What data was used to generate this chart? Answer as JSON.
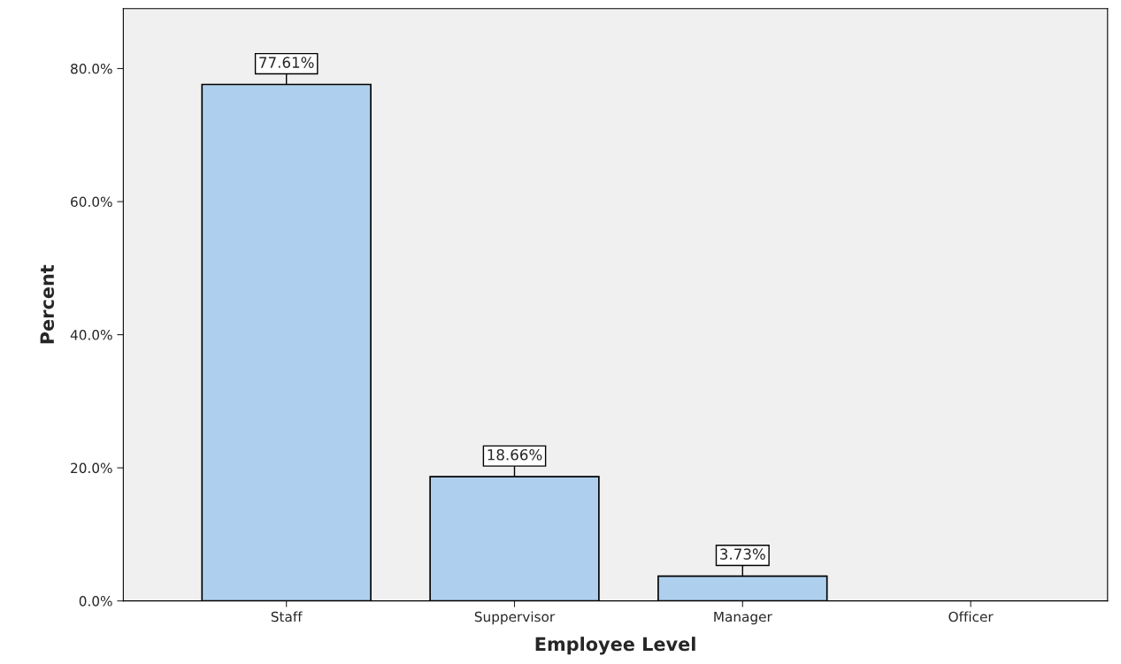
{
  "chart_data": {
    "type": "bar",
    "xlabel": "Employee Level",
    "ylabel": "Percent",
    "categories": [
      "Staff",
      "Suppervisor",
      "Manager",
      "Officer"
    ],
    "values": [
      77.61,
      18.66,
      3.73,
      null
    ],
    "value_labels": [
      "77.61%",
      "18.66%",
      "3.73%",
      null
    ],
    "color": "#aed0ee",
    "ylim": [
      0,
      89
    ],
    "yticks": [
      {
        "value": 0,
        "label": "0.0%"
      },
      {
        "value": 20,
        "label": "20.0%"
      },
      {
        "value": 40,
        "label": "40.0%"
      },
      {
        "value": 60,
        "label": "60.0%"
      },
      {
        "value": 80,
        "label": "80.0%"
      }
    ],
    "grid": false,
    "legend": false
  }
}
